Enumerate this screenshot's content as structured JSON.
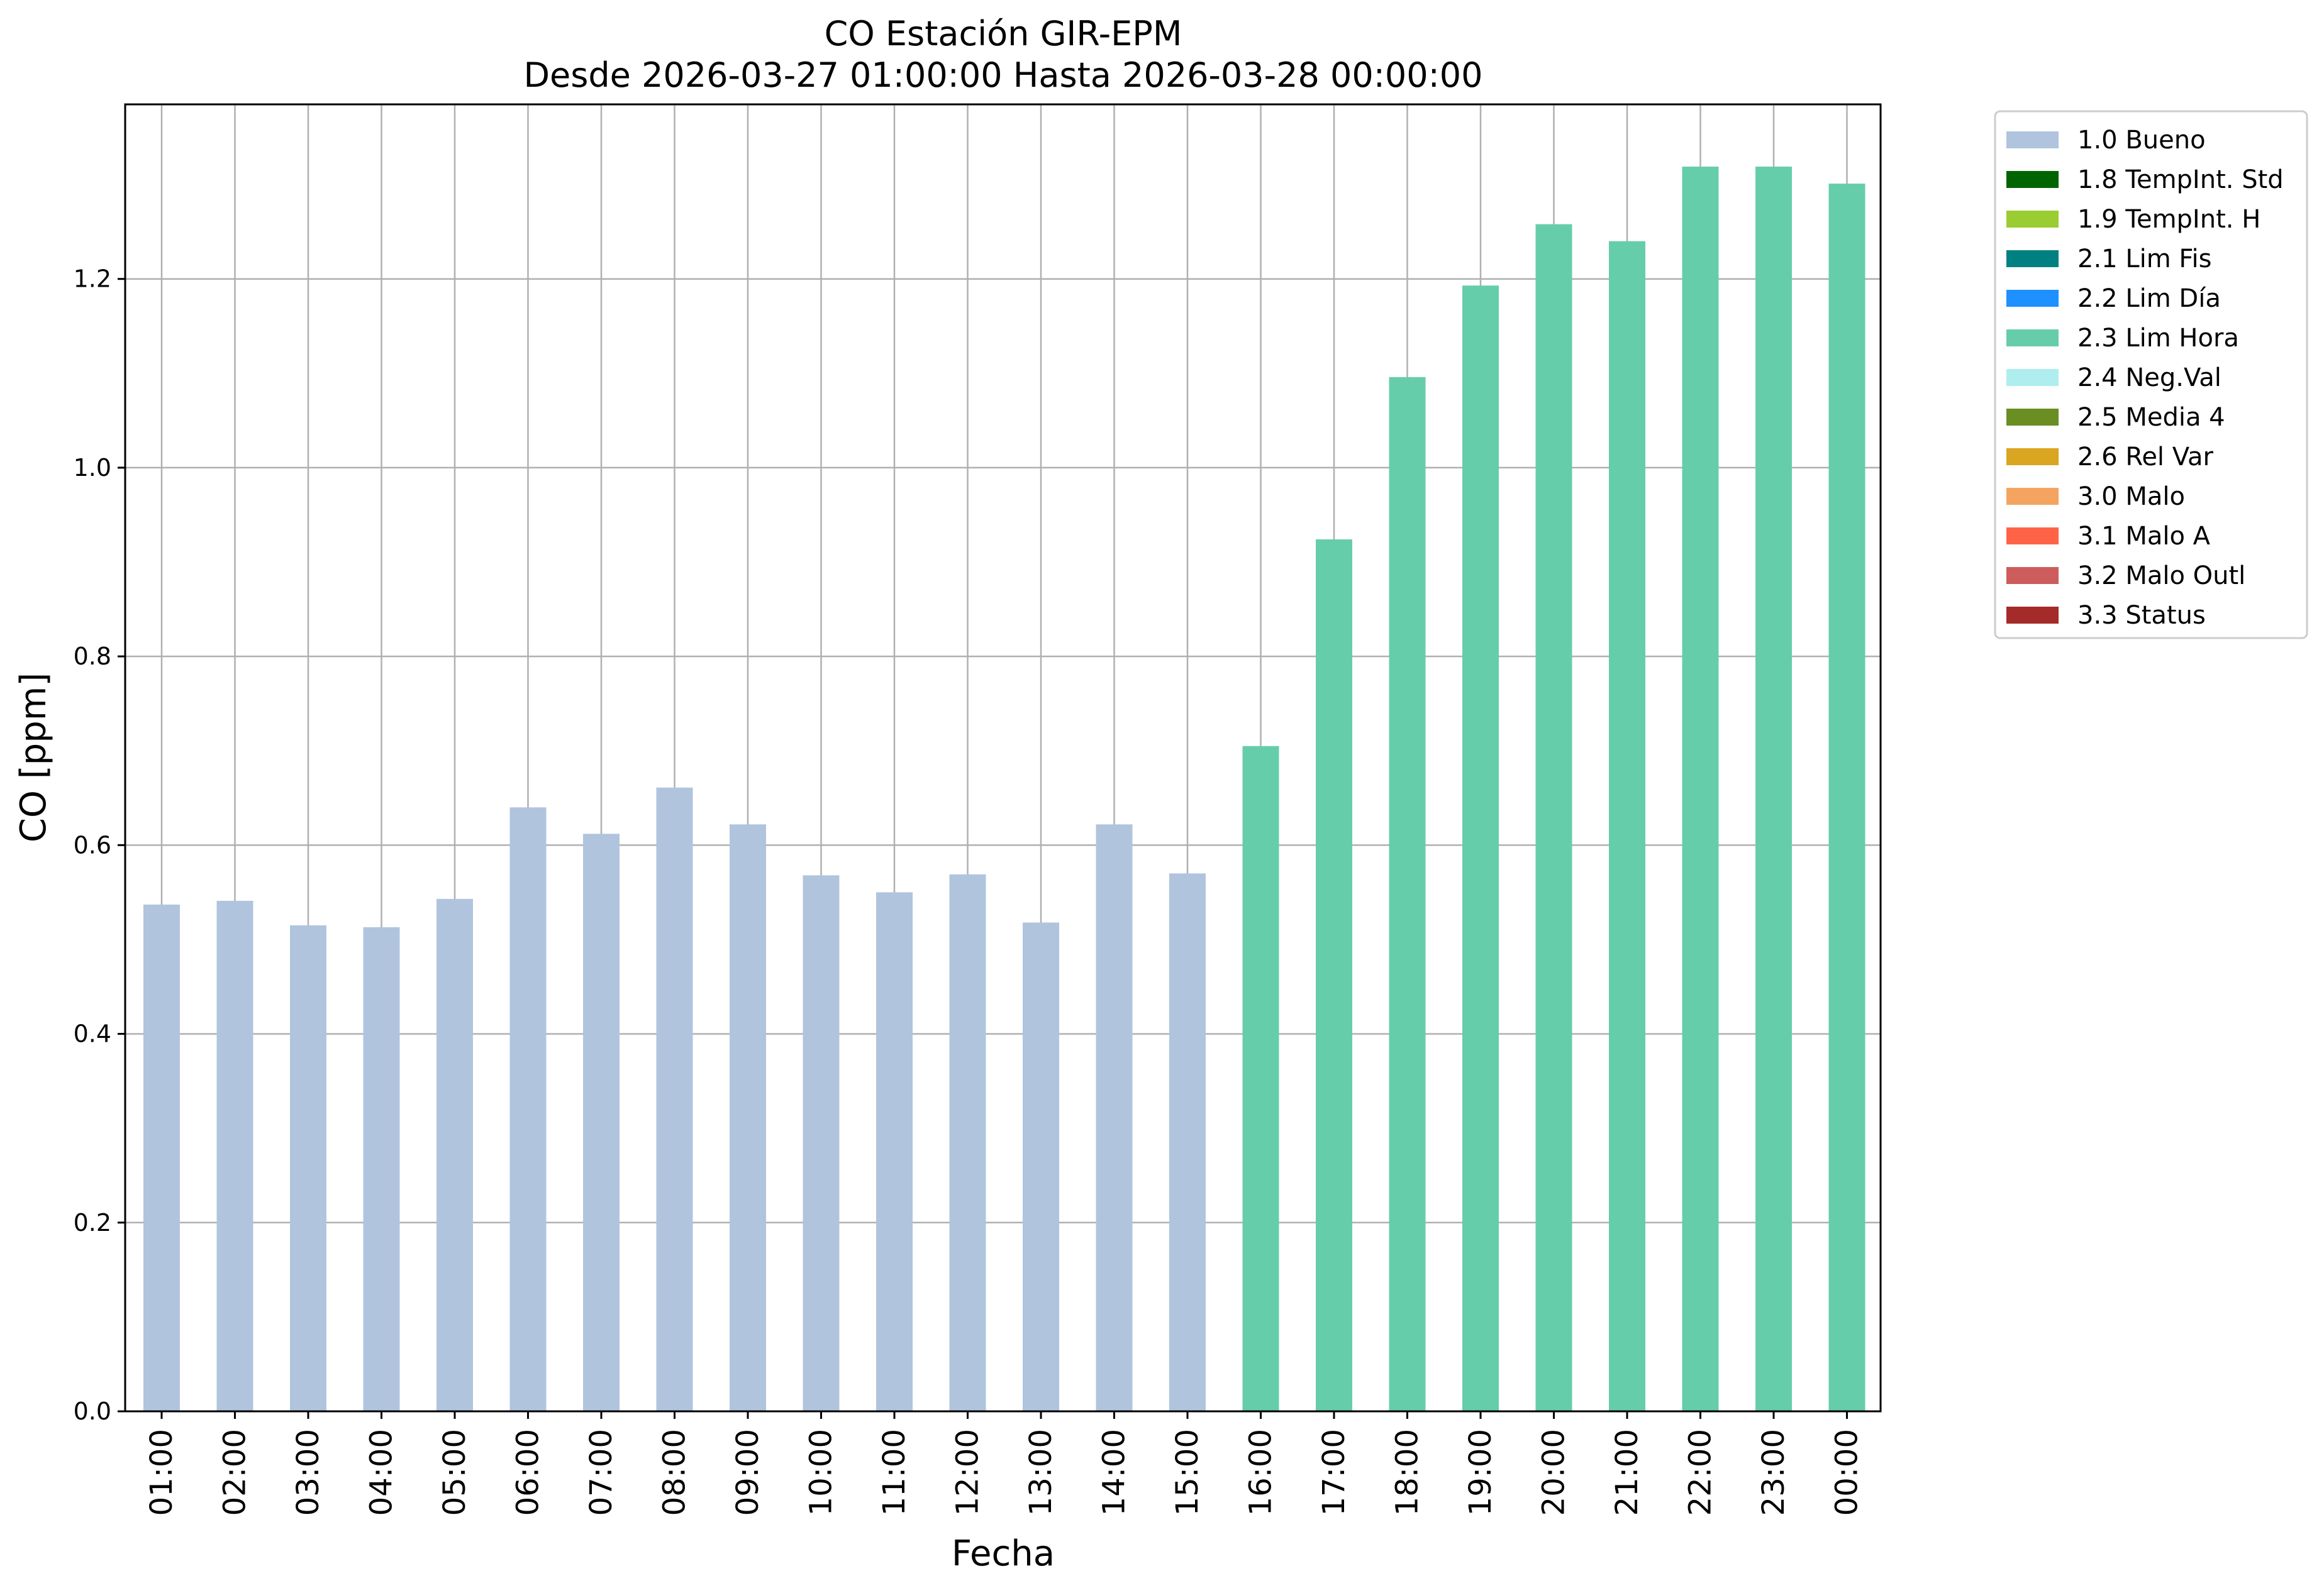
{
  "chart_data": {
    "type": "bar",
    "title_line1": "CO Estación GIR-EPM",
    "title_line2": "Desde 2026-03-27 01:00:00 Hasta 2026-03-28 00:00:00",
    "xlabel": "Fecha",
    "ylabel": "CO [ppm]",
    "ylim": [
      0,
      1.385
    ],
    "yticks": [
      "0.0",
      "0.2",
      "0.4",
      "0.6",
      "0.8",
      "1.0",
      "1.2"
    ],
    "grid": true,
    "legend_position": "outside-right-top",
    "categories": [
      "01:00",
      "02:00",
      "03:00",
      "04:00",
      "05:00",
      "06:00",
      "07:00",
      "08:00",
      "09:00",
      "10:00",
      "11:00",
      "12:00",
      "13:00",
      "14:00",
      "15:00",
      "16:00",
      "17:00",
      "18:00",
      "19:00",
      "20:00",
      "21:00",
      "22:00",
      "23:00",
      "00:00"
    ],
    "values": [
      0.537,
      0.541,
      0.515,
      0.513,
      0.543,
      0.64,
      0.612,
      0.661,
      0.622,
      0.568,
      0.55,
      0.569,
      0.518,
      0.622,
      0.57,
      0.705,
      0.924,
      1.096,
      1.193,
      1.258,
      1.24,
      1.319,
      1.319,
      1.301
    ],
    "flags": [
      "1.0 Bueno",
      "1.0 Bueno",
      "1.0 Bueno",
      "1.0 Bueno",
      "1.0 Bueno",
      "1.0 Bueno",
      "1.0 Bueno",
      "1.0 Bueno",
      "1.0 Bueno",
      "1.0 Bueno",
      "1.0 Bueno",
      "1.0 Bueno",
      "1.0 Bueno",
      "1.0 Bueno",
      "1.0 Bueno",
      "2.3 Lim Hora",
      "2.3 Lim Hora",
      "2.3 Lim Hora",
      "2.3 Lim Hora",
      "2.3 Lim Hora",
      "2.3 Lim Hora",
      "2.3 Lim Hora",
      "2.3 Lim Hora",
      "2.3 Lim Hora"
    ],
    "legend": [
      {
        "label": "1.0 Bueno",
        "color": "#b0c4de"
      },
      {
        "label": "1.8 TempInt. Std",
        "color": "#006400"
      },
      {
        "label": "1.9 TempInt. H",
        "color": "#9acd32"
      },
      {
        "label": "2.1 Lim Fis",
        "color": "#008080"
      },
      {
        "label": "2.2 Lim Día",
        "color": "#1e90ff"
      },
      {
        "label": "2.3 Lim Hora",
        "color": "#66cdaa"
      },
      {
        "label": "2.4 Neg.Val",
        "color": "#afeeee"
      },
      {
        "label": "2.5 Media 4",
        "color": "#6b8e23"
      },
      {
        "label": "2.6 Rel Var",
        "color": "#daa520"
      },
      {
        "label": "3.0 Malo",
        "color": "#f4a460"
      },
      {
        "label": "3.1 Malo A",
        "color": "#ff6347"
      },
      {
        "label": "3.2 Malo Outl",
        "color": "#cd5c5c"
      },
      {
        "label": "3.3 Status",
        "color": "#a52a2a"
      }
    ]
  }
}
